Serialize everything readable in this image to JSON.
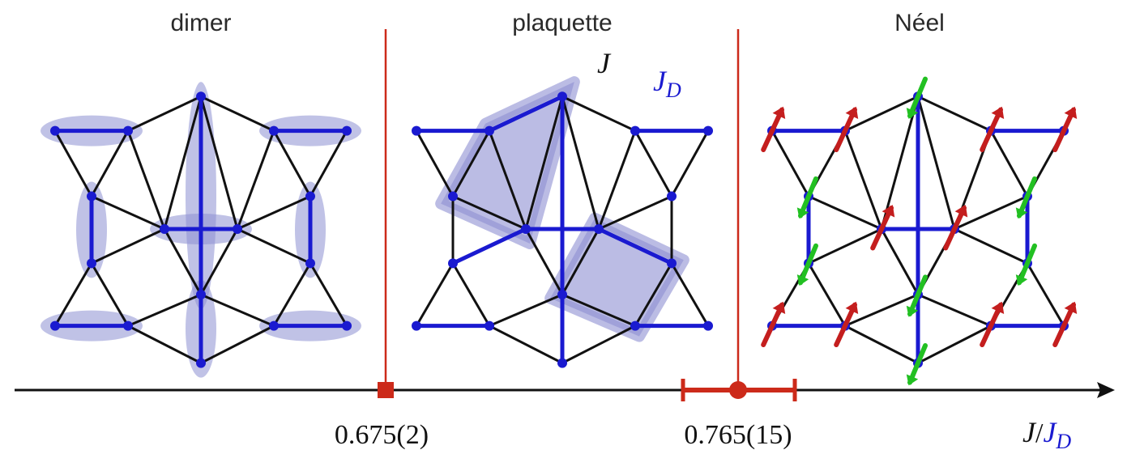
{
  "phases": [
    {
      "name": "dimer"
    },
    {
      "name": "plaquette"
    },
    {
      "name": "Néel"
    }
  ],
  "couplings": {
    "j": "J",
    "jd_main": "J",
    "jd_sub": "D"
  },
  "axis": {
    "label_num": "J",
    "label_slash": "/",
    "label_den": "J",
    "label_sub": "D"
  },
  "transitions": [
    {
      "label": "0.675(2)",
      "value": 0.675
    },
    {
      "label": "0.765(15)",
      "value": 0.765
    }
  ],
  "colors": {
    "lattice": "#111111",
    "dimer_bond": "#1a1ad0",
    "site": "#1a1ad0",
    "highlight": "#8d8fd2",
    "transition": "#cc2a1a",
    "spin_up": "#c41e1e",
    "spin_down": "#22c022",
    "axis": "#111111"
  }
}
